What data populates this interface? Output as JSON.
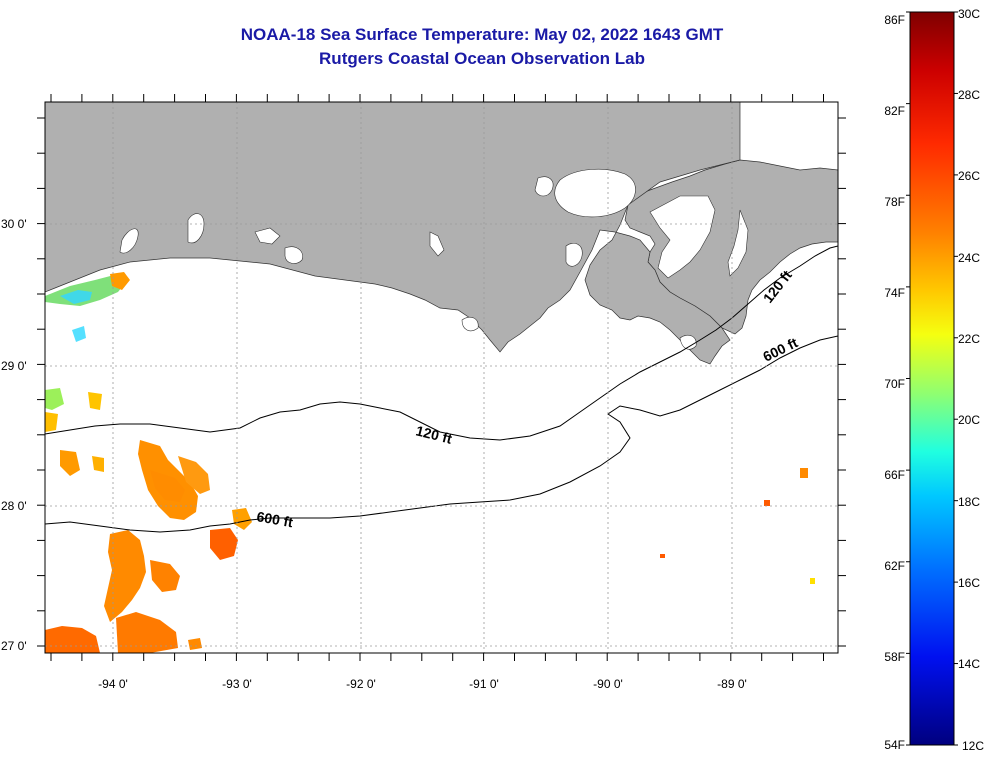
{
  "title": {
    "line1": "NOAA-18 Sea Surface Temperature:  May 02, 2022 1643 GMT",
    "line2": "Rutgers Coastal Ocean Observation Lab"
  },
  "map": {
    "longitude_labels": [
      "-94 0'",
      "-93 0'",
      "-92 0'",
      "-91 0'",
      "-90 0'",
      "-89 0'"
    ],
    "latitude_labels": [
      "30 0'",
      "29 0'",
      "28 0'",
      "27 0'"
    ],
    "contour_labels": {
      "shelf_120_west": "120 ft",
      "shelf_120_east": "120 ft",
      "shelf_600_west": "600 ft",
      "shelf_600_east": "600 ft"
    },
    "colors": {
      "land": "#b0b0b0",
      "frame": "#000000",
      "grid": "#9a9a9a"
    }
  },
  "colorbar": {
    "fahrenheit_labels": [
      "86F",
      "82F",
      "78F",
      "74F",
      "70F",
      "66F",
      "62F",
      "58F",
      "54F"
    ],
    "celsius_labels": [
      "30C",
      "28C",
      "26C",
      "24C",
      "22C",
      "20C",
      "18C",
      "16C",
      "14C",
      "12C"
    ],
    "colors_top_to_bottom": [
      "#7f0000",
      "#d40000",
      "#ff2a00",
      "#ff7f00",
      "#ffd000",
      "#e6ff1a",
      "#7fff7f",
      "#1affe6",
      "#00bfff",
      "#0066ff",
      "#0000e0",
      "#00007f"
    ]
  }
}
